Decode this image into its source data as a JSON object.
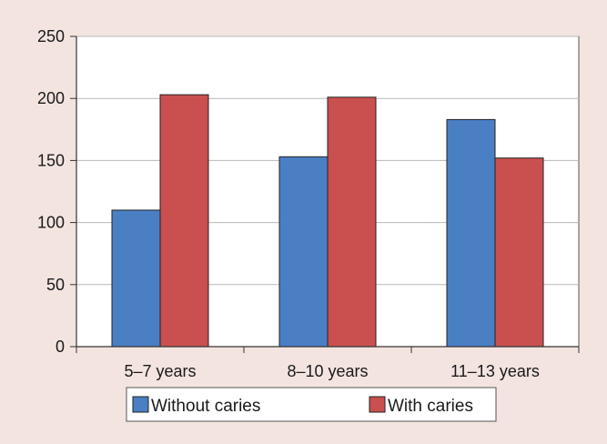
{
  "chart_data": {
    "type": "bar",
    "title": "",
    "xlabel": "",
    "ylabel": "",
    "categories": [
      "5–7 years",
      "8–10 years",
      "11–13 years"
    ],
    "series": [
      {
        "name": "Without caries",
        "color": "#4a7fc4",
        "values": [
          110,
          153,
          183
        ]
      },
      {
        "name": "With caries",
        "color": "#c9504f",
        "values": [
          203,
          201,
          152
        ]
      }
    ],
    "ylim": [
      0,
      250
    ],
    "yticks": [
      "0",
      "50",
      "100",
      "150",
      "200",
      "250"
    ],
    "grid": true,
    "legend_position": "bottom"
  }
}
